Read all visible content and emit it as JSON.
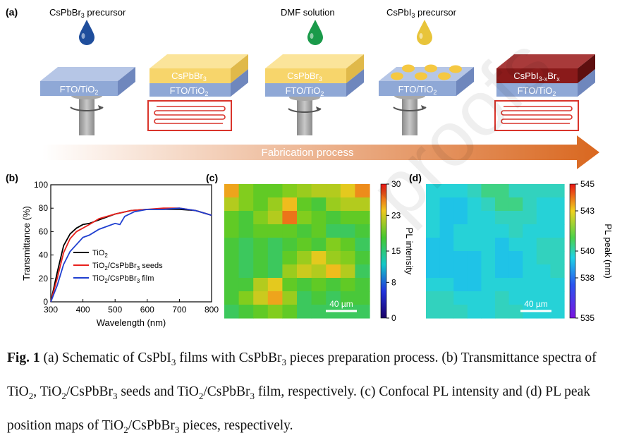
{
  "panels": {
    "a": "(a)",
    "b": "(b)",
    "c": "(c)",
    "d": "(d)"
  },
  "schematic": {
    "precursor_br": "CsPbBr",
    "precursor_br_sub": "3",
    "precursor_br_tail": " precursor",
    "dmf": "DMF solution",
    "precursor_i": "CsPbI",
    "precursor_i_sub": "3",
    "precursor_i_tail": " precursor",
    "substrate": "FTO/TiO",
    "substrate_sub": "2",
    "layer_br": "CsPbBr",
    "layer_br_sub": "3",
    "layer_mixed": "CsPbI",
    "layer_mixed_sub": "3-x",
    "layer_mixed_mid": "Br",
    "layer_mixed_sub2": "x",
    "arrow_label": "Fabrication process",
    "colors": {
      "drop_br": "#1f4e9c",
      "drop_dmf": "#1a9a4a",
      "drop_i": "#e8c43a",
      "substrate": "#8fa8d6",
      "layer_br": "#f7d56b",
      "layer_mixed": "#8a1a1a",
      "heater": "#d9342b",
      "arrow": "#d9671f"
    }
  },
  "chart_data": [
    {
      "panel": "b",
      "type": "line",
      "xlabel": "Wavelength (nm)",
      "ylabel": "Transmittance (%)",
      "xlim": [
        300,
        800
      ],
      "ylim": [
        0,
        100
      ],
      "xticks": [
        300,
        400,
        500,
        600,
        700,
        800
      ],
      "yticks": [
        0,
        20,
        40,
        60,
        80,
        100
      ],
      "legend_position": "bottom-left",
      "series": [
        {
          "name": "TiO2",
          "label": "TiO",
          "label_sub": "2",
          "label_tail": "",
          "color": "#000000",
          "x": [
            300,
            320,
            340,
            360,
            380,
            400,
            420,
            450,
            500,
            550,
            600,
            650,
            700,
            750,
            800
          ],
          "y": [
            0,
            25,
            48,
            58,
            63,
            66,
            67,
            70,
            75,
            78,
            79,
            79,
            79,
            78,
            74
          ]
        },
        {
          "name": "TiO2/CsPbBr3 seeds",
          "label": "TiO",
          "label_sub": "2",
          "label_tail": "/CsPbBr",
          "label_sub2": "3",
          "label_tail2": " seeds",
          "color": "#e8201c",
          "x": [
            300,
            320,
            340,
            360,
            380,
            400,
            420,
            450,
            500,
            550,
            600,
            650,
            700,
            750,
            800
          ],
          "y": [
            0,
            20,
            42,
            54,
            60,
            63,
            66,
            71,
            75,
            78,
            79,
            80,
            80,
            78,
            74
          ]
        },
        {
          "name": "TiO2/CsPbBr3 film",
          "label": "TiO",
          "label_sub": "2",
          "label_tail": "/CsPbBr",
          "label_sub2": "3",
          "label_tail2": " film",
          "color": "#1f3fd0",
          "x": [
            300,
            320,
            340,
            360,
            380,
            400,
            420,
            450,
            500,
            515,
            530,
            560,
            600,
            650,
            700,
            750,
            800
          ],
          "y": [
            0,
            14,
            32,
            43,
            49,
            55,
            57,
            62,
            67,
            66,
            73,
            77,
            79,
            79,
            80,
            78,
            74
          ]
        }
      ]
    },
    {
      "panel": "c",
      "type": "heatmap",
      "colorbar_label": "PL intensity",
      "colorbar_ticks": [
        0,
        8,
        15,
        23,
        30
      ],
      "clim": [
        0,
        30
      ],
      "scalebar": "40 µm",
      "rows": 10,
      "cols": 10,
      "values": [
        [
          24,
          18,
          17,
          17,
          18,
          19,
          20,
          20,
          22,
          25
        ],
        [
          20,
          18,
          17,
          19,
          23,
          17,
          16,
          19,
          20,
          20
        ],
        [
          17,
          16,
          18,
          20,
          26,
          18,
          17,
          16,
          17,
          17
        ],
        [
          17,
          16,
          17,
          17,
          17,
          16,
          17,
          15,
          15,
          16
        ],
        [
          16,
          15,
          16,
          15,
          16,
          17,
          16,
          18,
          17,
          15
        ],
        [
          16,
          15,
          16,
          15,
          17,
          19,
          22,
          19,
          18,
          16
        ],
        [
          16,
          15,
          16,
          15,
          19,
          21,
          20,
          23,
          20,
          15
        ],
        [
          16,
          16,
          20,
          22,
          17,
          16,
          17,
          16,
          17,
          16
        ],
        [
          16,
          18,
          21,
          24,
          19,
          15,
          16,
          15,
          16,
          16
        ],
        [
          15,
          16,
          17,
          18,
          17,
          15,
          15,
          15,
          15,
          15
        ]
      ]
    },
    {
      "panel": "d",
      "type": "heatmap",
      "colorbar_label": "PL peak (nm)",
      "colorbar_ticks": [
        535,
        538,
        540,
        543,
        545
      ],
      "clim": [
        535,
        545
      ],
      "scalebar": "40 µm",
      "rows": 10,
      "cols": 10,
      "values": [
        [
          539.5,
          539.5,
          539.5,
          540,
          540.5,
          540.5,
          540,
          540,
          540,
          540
        ],
        [
          539.5,
          539,
          539,
          539.5,
          540,
          540.5,
          540.5,
          540,
          539.5,
          539.5
        ],
        [
          539.5,
          539,
          539,
          539.5,
          539.5,
          540,
          540,
          540,
          539.5,
          539.5
        ],
        [
          539.5,
          539,
          539.5,
          539.5,
          539.5,
          539.5,
          540,
          539.5,
          539.5,
          539.5
        ],
        [
          539,
          539,
          539.5,
          539.5,
          539.5,
          539,
          539.5,
          539.5,
          540,
          540
        ],
        [
          539,
          539,
          539,
          539,
          539.5,
          539,
          539,
          539.5,
          540,
          540
        ],
        [
          539,
          539,
          539,
          539,
          539.5,
          539,
          539,
          539.5,
          539.5,
          540
        ],
        [
          539.5,
          539.5,
          539,
          539,
          539.5,
          539.5,
          539.5,
          539.5,
          539.5,
          539.5
        ],
        [
          540,
          540,
          539.5,
          539.5,
          539.5,
          540,
          539.5,
          539.5,
          539.5,
          539.5
        ],
        [
          540,
          540,
          540,
          539.5,
          539.5,
          540,
          540,
          539.5,
          539.5,
          539.5
        ]
      ]
    }
  ],
  "caption": {
    "fig": "Fig. 1",
    "parts": [
      {
        "t": " (a) Schematic of CsPbI"
      },
      {
        "s": "3"
      },
      {
        "t": " films with CsPbBr"
      },
      {
        "s": "3"
      },
      {
        "t": " pieces preparation process. (b) Transmittance spectra of TiO"
      },
      {
        "s": "2"
      },
      {
        "t": ", TiO"
      },
      {
        "s": "2"
      },
      {
        "t": "/CsPbBr"
      },
      {
        "s": "3"
      },
      {
        "t": " seeds and TiO"
      },
      {
        "s": "2"
      },
      {
        "t": "/CsPbBr"
      },
      {
        "s": "3"
      },
      {
        "t": " film, respectively. (c) Confocal PL intensity and (d) PL peak position maps of TiO"
      },
      {
        "s": "2"
      },
      {
        "t": "/CsPbBr"
      },
      {
        "s": "3"
      },
      {
        "t": " pieces, respectively."
      }
    ]
  },
  "watermark": "proofs"
}
